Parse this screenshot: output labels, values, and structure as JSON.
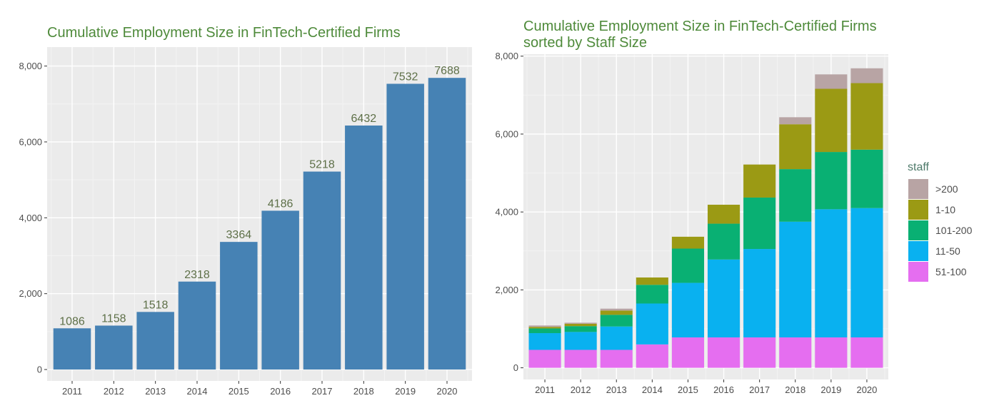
{
  "colors": {
    "bar": "#4682b4",
    "panel": "#ebebeb",
    "grid_major": "#ffffff",
    "grid_minor": "#f3f3f3",
    "title": "#4e8a3a"
  },
  "chart_data": [
    {
      "type": "bar",
      "title": "Cumulative Employment Size in FinTech-Certified Firms",
      "categories": [
        "2011",
        "2012",
        "2013",
        "2014",
        "2015",
        "2016",
        "2017",
        "2018",
        "2019",
        "2020"
      ],
      "values": [
        1086,
        1158,
        1518,
        2318,
        3364,
        4186,
        5218,
        6432,
        7532,
        7688
      ],
      "data_labels": [
        "1086",
        "1158",
        "1518",
        "2318",
        "3364",
        "4186",
        "5218",
        "6432",
        "7532",
        "7688"
      ],
      "ylim": [
        -300,
        8500
      ],
      "yticks": [
        0,
        2000,
        4000,
        6000,
        8000
      ],
      "ytick_labels": [
        "0",
        "2,000",
        "4,000",
        "6,000",
        "8,000"
      ],
      "grid": true
    },
    {
      "type": "bar",
      "stacked": true,
      "title_lines": [
        "Cumulative Employment Size in FinTech-Certified Firms",
        "sorted by Staff Size"
      ],
      "categories": [
        "2011",
        "2012",
        "2013",
        "2014",
        "2015",
        "2016",
        "2017",
        "2018",
        "2019",
        "2020"
      ],
      "series": [
        {
          "name": "51-100",
          "color": "#e56ef0",
          "values": [
            460,
            460,
            460,
            600,
            780,
            780,
            780,
            780,
            780,
            780
          ]
        },
        {
          "name": "11-50",
          "color": "#09b1f0",
          "values": [
            430,
            460,
            600,
            1050,
            1400,
            2000,
            2270,
            2970,
            3290,
            3320
          ]
        },
        {
          "name": "101-200",
          "color": "#09b073",
          "values": [
            120,
            150,
            300,
            480,
            880,
            920,
            1320,
            1350,
            1470,
            1500
          ]
        },
        {
          "name": "1-10",
          "color": "#9b9a14",
          "values": [
            40,
            60,
            110,
            188,
            304,
            486,
            848,
            1152,
            1622,
            1708
          ]
        },
        {
          "name": ">200",
          "color": "#b8a4a4",
          "values": [
            36,
            28,
            48,
            0,
            0,
            0,
            0,
            180,
            370,
            380
          ]
        }
      ],
      "ylim": [
        -300,
        8050
      ],
      "yticks": [
        0,
        2000,
        4000,
        6000,
        8000
      ],
      "ytick_labels": [
        "0",
        "2,000",
        "4,000",
        "6,000",
        "8,000"
      ],
      "legend_title": "staff",
      "legend_order": [
        ">200",
        "1-10",
        "101-200",
        "11-50",
        "51-100"
      ],
      "legend_position": "right",
      "grid": true
    }
  ]
}
